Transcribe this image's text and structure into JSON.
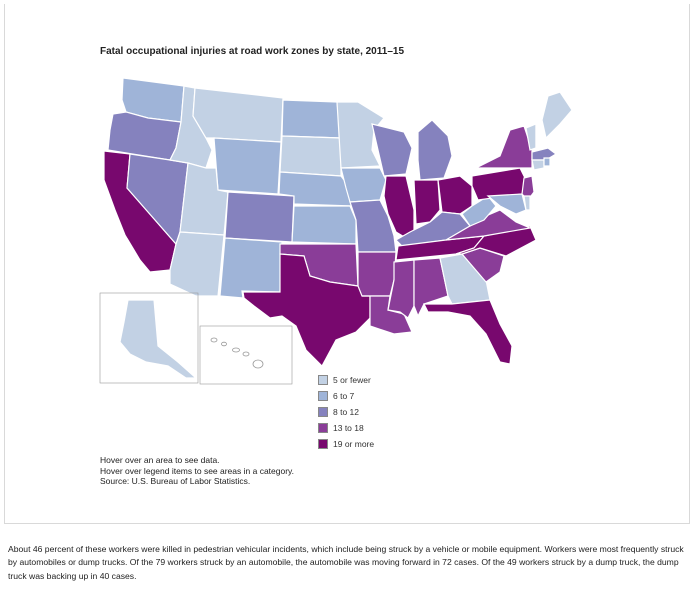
{
  "map": {
    "title": "Fatal occupational injuries at road work zones by state, 2011–15",
    "legend": [
      {
        "label": "5 or fewer",
        "color": "#c2d1e4"
      },
      {
        "label": "6 to 7",
        "color": "#9fb4d8"
      },
      {
        "label": "8 to 12",
        "color": "#8582be"
      },
      {
        "label": "13 to 18",
        "color": "#8a3d98"
      },
      {
        "label": "19 or more",
        "color": "#78086e"
      }
    ],
    "notes": [
      "Hover over an area to see data.",
      "Hover over legend items to see areas in a category.",
      "Source: U.S. Bureau of Labor Statistics."
    ]
  },
  "body_text": "About 46 percent of these workers were killed in pedestrian vehicular incidents, which include being struck by a vehicle or mobile equipment. Workers were most frequently struck by automobiles or dump trucks. Of the 79 workers struck by an automobile, the automobile was moving forward in 72 cases. Of the 49 workers struck by a dump truck, the dump truck was backing up in 40 cases."
}
